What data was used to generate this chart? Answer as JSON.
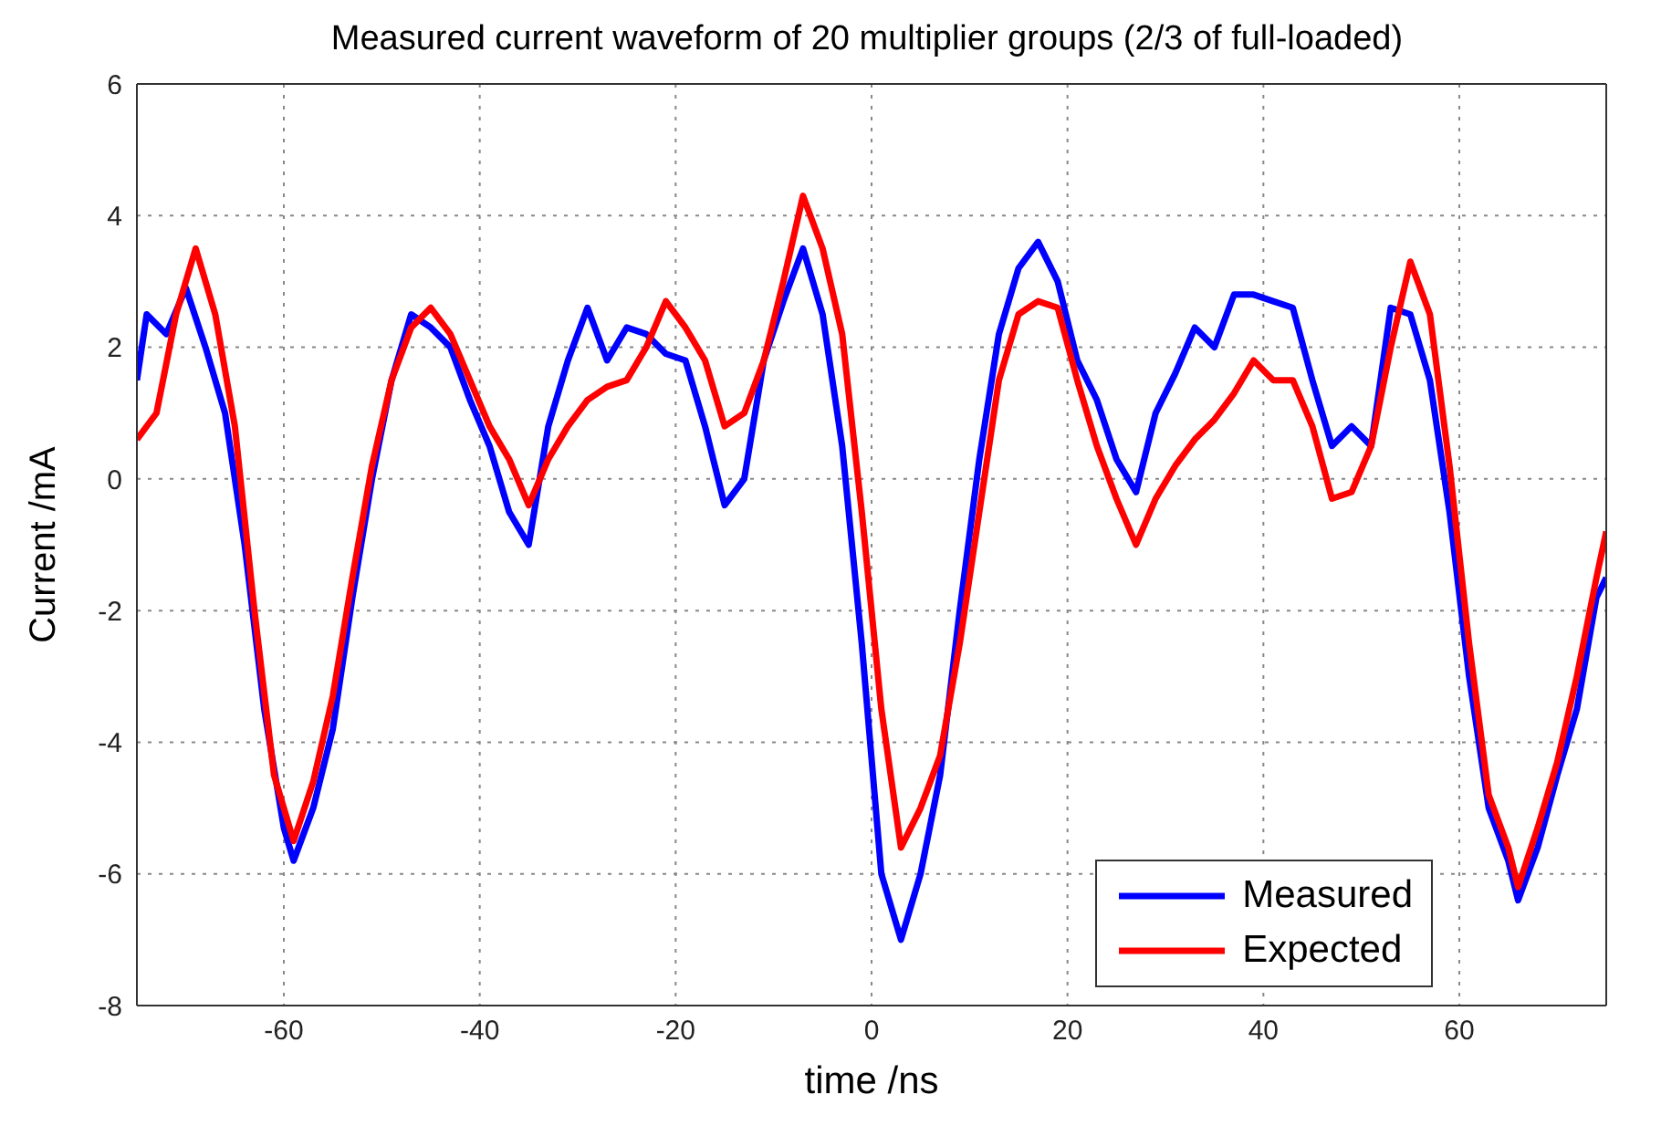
{
  "chart_data": {
    "type": "line",
    "title": "Measured current waveform of 20 multiplier groups (2/3 of full-loaded)",
    "xlabel": "time /ns",
    "ylabel": "Current /mA",
    "xlim": [
      -75,
      75
    ],
    "xticks": [
      -60,
      -40,
      -20,
      0,
      20,
      40,
      60
    ],
    "ylim": [
      -8,
      6
    ],
    "yticks": [
      -8,
      -6,
      -4,
      -2,
      0,
      2,
      4,
      6
    ],
    "grid": true,
    "legend": "bottom right",
    "marker": "none",
    "line_style": "solid",
    "series": [
      {
        "name": "Measured",
        "color": "#0000ff",
        "x": [
          -75,
          -74,
          -72,
          -70,
          -68,
          -66,
          -64,
          -62,
          -60,
          -59,
          -57,
          -55,
          -53,
          -51,
          -49,
          -47,
          -45,
          -43,
          -41,
          -39,
          -37,
          -35,
          -33,
          -31,
          -29,
          -27,
          -25,
          -23,
          -21,
          -19,
          -17,
          -15,
          -13,
          -11,
          -9,
          -7,
          -5,
          -3,
          -1,
          1,
          3,
          5,
          7,
          9,
          11,
          13,
          15,
          17,
          19,
          21,
          23,
          25,
          27,
          29,
          31,
          33,
          35,
          37,
          39,
          41,
          43,
          45,
          47,
          49,
          51,
          53,
          55,
          57,
          59,
          61,
          63,
          65,
          66,
          68,
          70,
          72,
          74,
          75
        ],
        "values": [
          1.5,
          2.5,
          2.2,
          2.9,
          2.0,
          1.0,
          -1.0,
          -3.5,
          -5.3,
          -5.8,
          -5.0,
          -3.8,
          -1.8,
          0,
          1.5,
          2.5,
          2.3,
          2.0,
          1.2,
          0.5,
          -0.5,
          -1.0,
          0.8,
          1.8,
          2.6,
          1.8,
          2.3,
          2.2,
          1.9,
          1.8,
          0.8,
          -0.4,
          0,
          1.8,
          2.7,
          3.5,
          2.5,
          0.5,
          -2.5,
          -6.0,
          -7.0,
          -6.0,
          -4.5,
          -2.0,
          0.3,
          2.2,
          3.2,
          3.6,
          3.0,
          1.8,
          1.2,
          0.3,
          -0.2,
          1.0,
          1.6,
          2.3,
          2.0,
          2.8,
          2.8,
          2.7,
          2.6,
          1.5,
          0.5,
          0.8,
          0.5,
          2.6,
          2.5,
          1.5,
          -0.5,
          -3.0,
          -5.0,
          -5.8,
          -6.4,
          -5.6,
          -4.5,
          -3.5,
          -1.8,
          -1.5
        ]
      },
      {
        "name": "Expected",
        "color": "#ff0000",
        "x": [
          -75,
          -73,
          -71,
          -69,
          -67,
          -65,
          -63,
          -61,
          -59,
          -57,
          -55,
          -53,
          -51,
          -49,
          -47,
          -45,
          -43,
          -41,
          -39,
          -37,
          -35,
          -33,
          -31,
          -29,
          -27,
          -25,
          -23,
          -21,
          -19,
          -17,
          -15,
          -13,
          -11,
          -9,
          -7,
          -5,
          -3,
          -1,
          1,
          3,
          5,
          7,
          9,
          11,
          13,
          15,
          17,
          19,
          21,
          23,
          25,
          27,
          29,
          31,
          33,
          35,
          37,
          39,
          41,
          43,
          45,
          47,
          49,
          51,
          53,
          55,
          57,
          59,
          61,
          63,
          65,
          66,
          68,
          70,
          72,
          74,
          75
        ],
        "values": [
          0.6,
          1.0,
          2.5,
          3.5,
          2.5,
          0.8,
          -2.0,
          -4.5,
          -5.5,
          -4.6,
          -3.3,
          -1.5,
          0.2,
          1.5,
          2.3,
          2.6,
          2.2,
          1.5,
          0.8,
          0.3,
          -0.4,
          0.3,
          0.8,
          1.2,
          1.4,
          1.5,
          2.0,
          2.7,
          2.3,
          1.8,
          0.8,
          1.0,
          1.8,
          3.0,
          4.3,
          3.5,
          2.2,
          -0.5,
          -3.5,
          -5.6,
          -5.0,
          -4.2,
          -2.5,
          -0.5,
          1.5,
          2.5,
          2.7,
          2.6,
          1.5,
          0.5,
          -0.3,
          -1.0,
          -0.3,
          0.2,
          0.6,
          0.9,
          1.3,
          1.8,
          1.5,
          1.5,
          0.8,
          -0.3,
          -0.2,
          0.5,
          2.0,
          3.3,
          2.5,
          0.2,
          -2.5,
          -4.8,
          -5.6,
          -6.2,
          -5.3,
          -4.3,
          -3.0,
          -1.5,
          -0.8
        ]
      }
    ]
  }
}
